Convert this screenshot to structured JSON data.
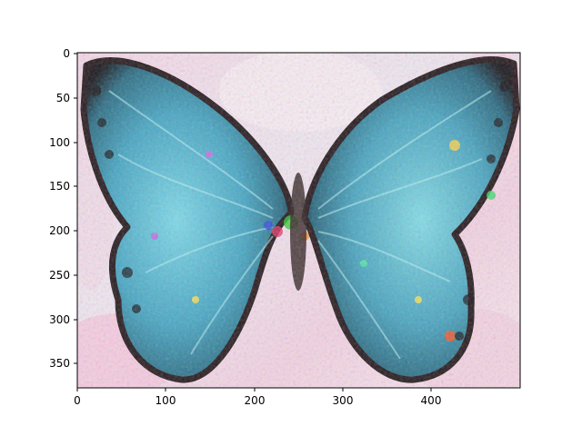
{
  "figure": {
    "background_color": "#ffffff",
    "image_description_colors": [
      "#8fd3e6",
      "#f3c6dd",
      "#3a2a2a",
      "#6fe0c8",
      "#ffffff"
    ],
    "x_axis": {
      "range": [
        0,
        500
      ],
      "ticks": [
        "0",
        "100",
        "200",
        "300",
        "400"
      ],
      "tick_values": [
        0,
        100,
        200,
        300,
        400
      ]
    },
    "y_axis": {
      "range": [
        0,
        378
      ],
      "inverted": true,
      "ticks": [
        "0",
        "50",
        "100",
        "150",
        "200",
        "250",
        "300",
        "350"
      ],
      "tick_values": [
        0,
        50,
        100,
        150,
        200,
        250,
        300,
        350
      ]
    }
  }
}
